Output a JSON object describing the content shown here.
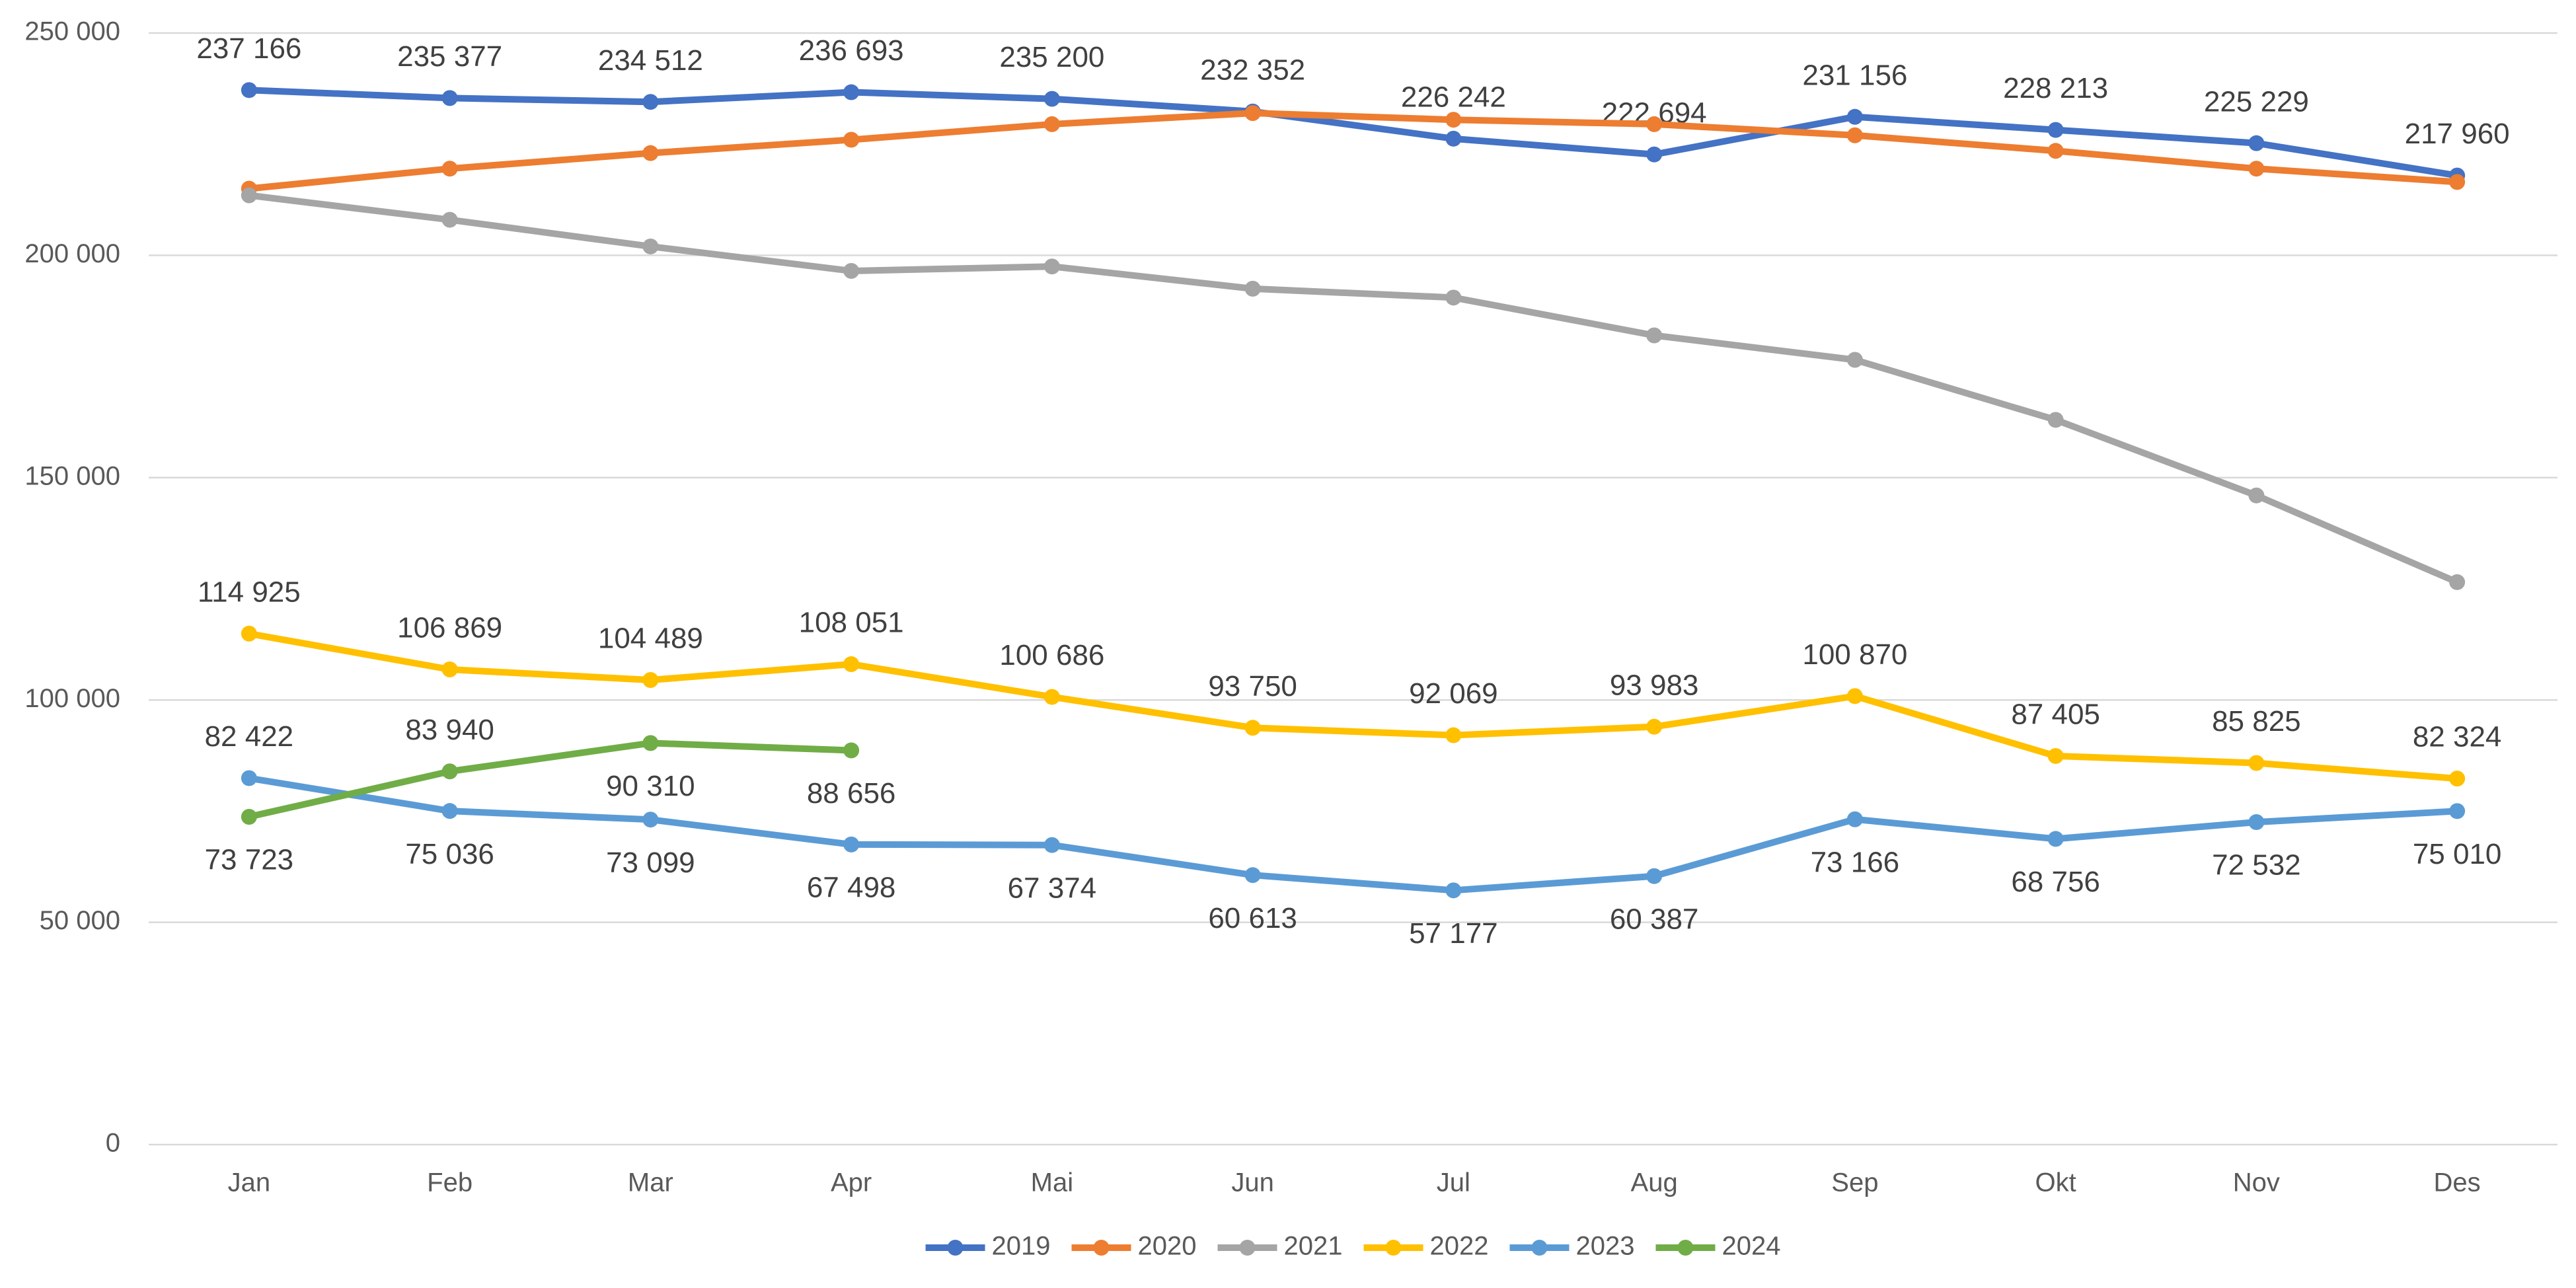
{
  "chart_data": {
    "type": "line",
    "categories": [
      "Jan",
      "Feb",
      "Mar",
      "Apr",
      "Mai",
      "Jun",
      "Jul",
      "Aug",
      "Sep",
      "Okt",
      "Nov",
      "Des"
    ],
    "series": [
      {
        "name": "2019",
        "color": "#4472c4",
        "values": [
          237166,
          235377,
          234512,
          236693,
          235200,
          232352,
          226242,
          222694,
          231156,
          228213,
          225229,
          217960
        ],
        "value_labels": [
          "237 166",
          "235 377",
          "234 512",
          "236 693",
          "235 200",
          "232 352",
          "226 242",
          "222 694",
          "231 156",
          "228 213",
          "225 229",
          "217 960"
        ]
      },
      {
        "name": "2020",
        "color": "#ed7d31",
        "values": [
          215000,
          219500,
          223000,
          226000,
          229500,
          232000,
          230500,
          229500,
          227000,
          223500,
          219500,
          216500
        ]
      },
      {
        "name": "2021",
        "color": "#a5a5a5",
        "values": [
          213500,
          208000,
          202000,
          196500,
          197500,
          192500,
          190500,
          182000,
          176500,
          163000,
          146000,
          126500
        ]
      },
      {
        "name": "2022",
        "color": "#ffc000",
        "values": [
          114925,
          106869,
          104489,
          108051,
          100686,
          93750,
          92069,
          93983,
          100870,
          87405,
          85825,
          82324
        ],
        "value_labels": [
          "114 925",
          "106 869",
          "104 489",
          "108 051",
          "100 686",
          "93 750",
          "92 069",
          "93 983",
          "100 870",
          "87 405",
          "85 825",
          "82 324"
        ]
      },
      {
        "name": "2023",
        "color": "#5b9bd5",
        "values": [
          82422,
          75036,
          73099,
          67498,
          67374,
          60613,
          57177,
          60387,
          73166,
          68756,
          72532,
          75010
        ],
        "value_labels": [
          "82 422",
          "75 036",
          "73 099",
          "67 498",
          "67 374",
          "60 613",
          "57 177",
          "60 387",
          "73 166",
          "68 756",
          "72 532",
          "75 010"
        ]
      },
      {
        "name": "2024",
        "color": "#70ad47",
        "values": [
          73723,
          83940,
          90310,
          88656,
          null,
          null,
          null,
          null,
          null,
          null,
          null,
          null
        ],
        "value_labels": [
          "73 723",
          "83 940",
          "90 310",
          "88 656",
          null,
          null,
          null,
          null,
          null,
          null,
          null,
          null
        ]
      }
    ],
    "ylim": [
      0,
      250000
    ],
    "yticks": [
      0,
      {
        "value": 50000,
        "label": "50 000"
      },
      {
        "value": 100000,
        "label": "100 000"
      },
      {
        "value": 150000,
        "label": "150 000"
      },
      {
        "value": 200000,
        "label": "200 000"
      },
      {
        "value": 250000,
        "label": "250 000"
      }
    ],
    "grid": true,
    "legend": "bottom"
  }
}
